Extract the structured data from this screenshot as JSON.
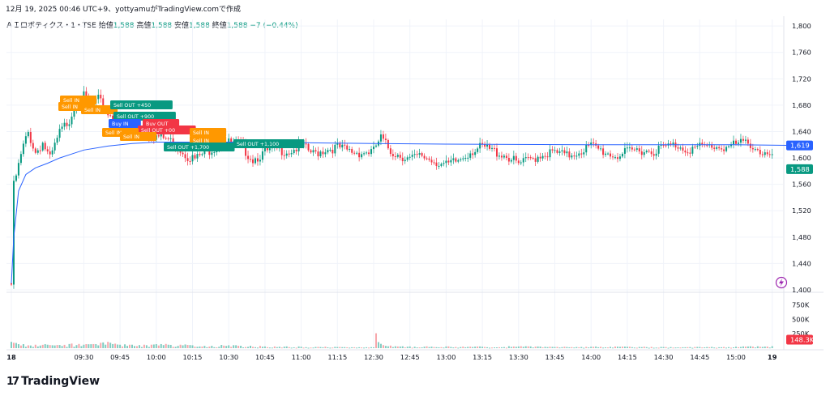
{
  "header": {
    "caption": "12月 19, 2025 00:46 UTC+9、yottyamuがTradingView.comで作成"
  },
  "legend": {
    "symbol": "ＡＩロボティクス・1・TSE",
    "open_label": "始値",
    "open_value": "1,588",
    "high_label": "高値",
    "high_value": "1,588",
    "low_label": "安値",
    "low_value": "1,588",
    "close_label": "終値",
    "close_value": "1,588",
    "change": "−7 (−0.44%)"
  },
  "price_axis": {
    "ticks": [
      "1,800",
      "1,760",
      "1,720",
      "1,680",
      "1,640",
      "1,600",
      "1,560",
      "1,520",
      "1,480",
      "1,440",
      "1,400"
    ],
    "vwap_label": "1,619",
    "last_label": "1,588"
  },
  "volume_axis": {
    "ticks": [
      "750K",
      "500K",
      "250K"
    ],
    "last_label": "148.3K"
  },
  "time_axis": {
    "ticks": [
      "18",
      "09:30",
      "09:45",
      "10:00",
      "10:15",
      "10:30",
      "10:45",
      "11:00",
      "11:15",
      "12:30",
      "12:45",
      "13:00",
      "13:15",
      "13:30",
      "13:45",
      "14:00",
      "14:15",
      "14:30",
      "14:45",
      "15:00",
      "19"
    ]
  },
  "trade_labels": [
    {
      "text": "Sell IN",
      "color": "#ff9800"
    },
    {
      "text": "Sell IN",
      "color": "#ff9800"
    },
    {
      "text": "Sell IN",
      "color": "#ff9800"
    },
    {
      "text": "Sell OUT +450",
      "color": "#089981"
    },
    {
      "text": "Sell OUT +900",
      "color": "#089981"
    },
    {
      "text": "Buy IN",
      "color": "#2962ff"
    },
    {
      "text": "Buy OUT",
      "color": "#f23645"
    },
    {
      "text": "Sell OUT +00",
      "color": "#f23645"
    },
    {
      "text": "Sell IN",
      "color": "#ff9800"
    },
    {
      "text": "Sell IN",
      "color": "#ff9800"
    },
    {
      "text": "Sell IN",
      "color": "#ff9800"
    },
    {
      "text": "Sell IN",
      "color": "#ff9800"
    },
    {
      "text": "Sell OUT +1,700",
      "color": "#089981"
    },
    {
      "text": "Sell OUT +1,100",
      "color": "#089981"
    }
  ],
  "branding": {
    "logo_mark": "17",
    "logo_text": "TradingView"
  },
  "colors": {
    "up": "#089981",
    "down": "#f23645",
    "vwap": "#2962ff",
    "volume_up": "#80ccc1",
    "volume_down": "#f7a6ab"
  },
  "chart_data": {
    "type": "candlestick",
    "timeframe": "1 minute",
    "series": [
      {
        "name": "price",
        "close_path": [
          [
            "09:00",
            1410
          ],
          [
            "09:01",
            1560
          ],
          [
            "09:03",
            1590
          ],
          [
            "09:05",
            1620
          ],
          [
            "09:07",
            1640
          ],
          [
            "09:10",
            1610
          ],
          [
            "09:13",
            1625
          ],
          [
            "09:16",
            1600
          ],
          [
            "09:20",
            1640
          ],
          [
            "09:24",
            1660
          ],
          [
            "09:27",
            1690
          ],
          [
            "09:30",
            1695
          ],
          [
            "09:33",
            1680
          ],
          [
            "09:36",
            1690
          ],
          [
            "09:40",
            1670
          ],
          [
            "09:43",
            1660
          ],
          [
            "09:46",
            1655
          ],
          [
            "09:50",
            1650
          ],
          [
            "09:55",
            1640
          ],
          [
            "10:00",
            1635
          ],
          [
            "10:05",
            1630
          ],
          [
            "10:10",
            1615
          ],
          [
            "10:13",
            1605
          ],
          [
            "10:16",
            1600
          ],
          [
            "10:20",
            1610
          ],
          [
            "10:25",
            1620
          ],
          [
            "10:30",
            1625
          ],
          [
            "10:35",
            1620
          ],
          [
            "10:40",
            1600
          ],
          [
            "10:45",
            1610
          ],
          [
            "10:50",
            1615
          ],
          [
            "10:55",
            1612
          ],
          [
            "11:00",
            1620
          ],
          [
            "11:05",
            1608
          ],
          [
            "11:10",
            1615
          ],
          [
            "11:15",
            1618
          ],
          [
            "11:20",
            1612
          ],
          [
            "11:25",
            1610
          ],
          [
            "11:30",
            1612
          ],
          [
            "12:30",
            1615
          ],
          [
            "12:33",
            1632
          ],
          [
            "12:37",
            1612
          ],
          [
            "12:45",
            1600
          ],
          [
            "12:50",
            1605
          ],
          [
            "12:55",
            1598
          ],
          [
            "13:00",
            1590
          ],
          [
            "13:05",
            1598
          ],
          [
            "13:10",
            1612
          ],
          [
            "13:15",
            1618
          ],
          [
            "13:20",
            1612
          ],
          [
            "13:25",
            1605
          ],
          [
            "13:30",
            1592
          ],
          [
            "13:35",
            1600
          ],
          [
            "13:40",
            1608
          ],
          [
            "13:45",
            1610
          ],
          [
            "13:50",
            1605
          ],
          [
            "13:55",
            1612
          ],
          [
            "14:00",
            1620
          ],
          [
            "14:05",
            1612
          ],
          [
            "14:10",
            1605
          ],
          [
            "14:15",
            1610
          ],
          [
            "14:20",
            1615
          ],
          [
            "14:25",
            1612
          ],
          [
            "14:30",
            1618
          ],
          [
            "14:35",
            1622
          ],
          [
            "14:40",
            1615
          ],
          [
            "14:45",
            1618
          ],
          [
            "14:50",
            1620
          ],
          [
            "14:55",
            1618
          ],
          [
            "15:00",
            1622
          ],
          [
            "15:05",
            1626
          ],
          [
            "15:10",
            1612
          ],
          [
            "15:15",
            1600
          ],
          [
            "15:20",
            1612
          ],
          [
            "15:25",
            1588
          ]
        ]
      },
      {
        "name": "vwap",
        "path": [
          [
            "09:00",
            1410
          ],
          [
            "09:01",
            1480
          ],
          [
            "09:03",
            1550
          ],
          [
            "09:06",
            1575
          ],
          [
            "09:10",
            1585
          ],
          [
            "09:15",
            1592
          ],
          [
            "09:20",
            1600
          ],
          [
            "09:25",
            1606
          ],
          [
            "09:30",
            1612
          ],
          [
            "09:40",
            1618
          ],
          [
            "09:50",
            1622
          ],
          [
            "10:00",
            1624
          ],
          [
            "10:15",
            1624
          ],
          [
            "10:30",
            1624
          ],
          [
            "11:00",
            1623
          ],
          [
            "12:30",
            1622
          ],
          [
            "13:00",
            1621
          ],
          [
            "14:00",
            1620
          ],
          [
            "15:00",
            1620
          ],
          [
            "15:25",
            1619
          ]
        ]
      }
    ],
    "volume_path_k": [
      [
        "09:00",
        110
      ],
      [
        "09:02",
        90
      ],
      [
        "09:05",
        70
      ],
      [
        "09:10",
        60
      ],
      [
        "09:15",
        60
      ],
      [
        "09:20",
        55
      ],
      [
        "09:25",
        80
      ],
      [
        "09:30",
        60
      ],
      [
        "09:35",
        70
      ],
      [
        "09:40",
        110
      ],
      [
        "09:45",
        60
      ],
      [
        "09:50",
        60
      ],
      [
        "09:55",
        60
      ],
      [
        "10:00",
        70
      ],
      [
        "10:05",
        60
      ],
      [
        "10:10",
        60
      ],
      [
        "10:15",
        50
      ],
      [
        "10:20",
        40
      ],
      [
        "10:30",
        50
      ],
      [
        "10:45",
        30
      ],
      [
        "11:00",
        25
      ],
      [
        "11:15",
        20
      ],
      [
        "11:30",
        15
      ],
      [
        "12:30",
        290
      ],
      [
        "12:35",
        40
      ],
      [
        "12:45",
        30
      ],
      [
        "13:00",
        30
      ],
      [
        "13:15",
        25
      ],
      [
        "13:30",
        30
      ],
      [
        "13:45",
        20
      ],
      [
        "14:00",
        25
      ],
      [
        "14:15",
        25
      ],
      [
        "14:30",
        20
      ],
      [
        "14:45",
        20
      ],
      [
        "15:00",
        25
      ],
      [
        "15:15",
        35
      ],
      [
        "15:25",
        148.3
      ]
    ],
    "ylim": [
      1400,
      1810
    ],
    "volume_ylim": [
      0,
      900
    ]
  }
}
